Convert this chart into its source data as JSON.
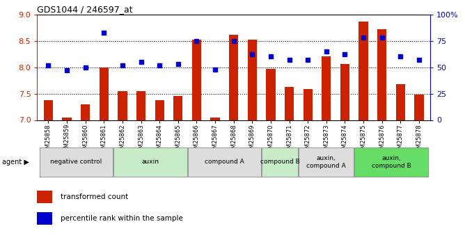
{
  "title": "GDS1044 / 246597_at",
  "samples": [
    "GSM25858",
    "GSM25859",
    "GSM25860",
    "GSM25861",
    "GSM25862",
    "GSM25863",
    "GSM25864",
    "GSM25865",
    "GSM25866",
    "GSM25867",
    "GSM25868",
    "GSM25869",
    "GSM25870",
    "GSM25871",
    "GSM25872",
    "GSM25873",
    "GSM25874",
    "GSM25875",
    "GSM25876",
    "GSM25877",
    "GSM25878"
  ],
  "bar_values": [
    7.38,
    7.05,
    7.3,
    8.0,
    7.55,
    7.55,
    7.38,
    7.45,
    8.52,
    7.04,
    8.62,
    8.52,
    7.97,
    7.62,
    7.58,
    8.2,
    8.06,
    8.87,
    8.72,
    7.68,
    7.48
  ],
  "percentile_values": [
    52,
    47,
    50,
    83,
    52,
    55,
    52,
    53,
    75,
    48,
    75,
    62,
    60,
    57,
    57,
    65,
    62,
    78,
    78,
    60,
    57
  ],
  "groups": [
    {
      "label": "negative control",
      "start": 0,
      "end": 4,
      "color": "#dddddd"
    },
    {
      "label": "auxin",
      "start": 4,
      "end": 8,
      "color": "#c8ecc8"
    },
    {
      "label": "compound A",
      "start": 8,
      "end": 12,
      "color": "#dddddd"
    },
    {
      "label": "compound B",
      "start": 12,
      "end": 14,
      "color": "#c8ecc8"
    },
    {
      "label": "auxin,\ncompound A",
      "start": 14,
      "end": 17,
      "color": "#dddddd"
    },
    {
      "label": "auxin,\ncompound B",
      "start": 17,
      "end": 21,
      "color": "#66dd66"
    }
  ],
  "bar_color": "#cc2200",
  "dot_color": "#0000cc",
  "ylim_left": [
    7.0,
    9.0
  ],
  "ylim_right": [
    0,
    100
  ],
  "yticks_left": [
    7.0,
    7.5,
    8.0,
    8.5,
    9.0
  ],
  "yticks_right": [
    0,
    25,
    50,
    75,
    100
  ],
  "ytick_labels_right": [
    "0",
    "25",
    "50",
    "75",
    "100%"
  ],
  "legend_bar_label": "transformed count",
  "legend_dot_label": "percentile rank within the sample",
  "agent_label": "agent ▶"
}
